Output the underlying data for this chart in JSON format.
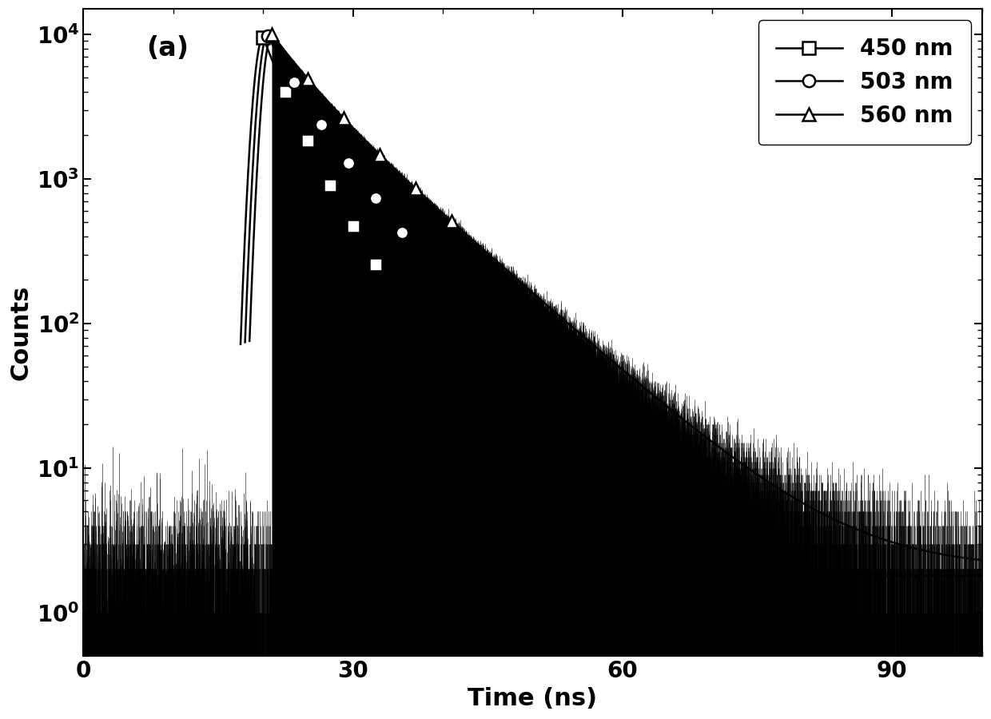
{
  "title": "(a)",
  "xlabel": "Time (ns)",
  "ylabel": "Counts",
  "xlim": [
    0,
    100
  ],
  "ylim_log": [
    0.5,
    15000
  ],
  "background_color": "#ffffff",
  "line_color": "#000000",
  "series": [
    {
      "label": "450 nm",
      "marker": "s",
      "peak_time": 20.0,
      "peak_count": 9500,
      "tau1": 2.2,
      "tau2": 4.5,
      "amp1": 0.6,
      "amp2": 0.4,
      "noise_floor": 1.8,
      "marker_times": [
        20.0,
        22.5,
        25.0,
        27.5,
        30.0,
        32.5
      ]
    },
    {
      "label": "503 nm",
      "marker": "o",
      "peak_time": 20.5,
      "peak_count": 9800,
      "tau1": 2.8,
      "tau2": 6.0,
      "amp1": 0.5,
      "amp2": 0.5,
      "noise_floor": 1.8,
      "marker_times": [
        20.5,
        23.5,
        26.5,
        29.5,
        32.5,
        35.5
      ]
    },
    {
      "label": "560 nm",
      "marker": "^",
      "peak_time": 21.0,
      "peak_count": 10000,
      "tau1": 3.5,
      "tau2": 8.0,
      "amp1": 0.4,
      "amp2": 0.6,
      "noise_floor": 2.0,
      "marker_times": [
        21.0,
        25.0,
        29.0,
        33.0,
        37.0,
        41.0
      ]
    }
  ],
  "pre_peak_noise_floor": 1.8,
  "pre_peak_noise_max": 4.5,
  "marker_size": 11,
  "linewidth": 1.8,
  "font_size_label": 22,
  "font_size_tick": 20,
  "font_size_legend": 20,
  "font_size_title": 24
}
